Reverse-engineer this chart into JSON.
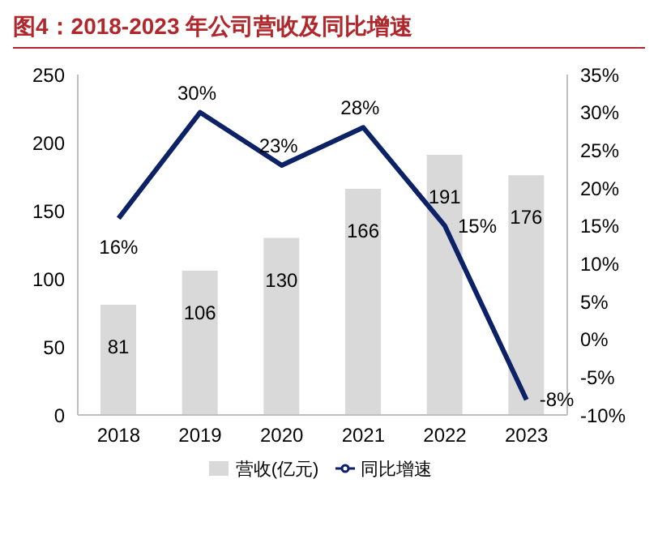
{
  "chart_data": {
    "type": "bar",
    "title": "图4：2018-2023 年公司营收及同比增速",
    "categories": [
      "2018",
      "2019",
      "2020",
      "2021",
      "2022",
      "2023"
    ],
    "series": [
      {
        "name": "营收(亿元)",
        "color": "#d9d9d9",
        "values": [
          81,
          106,
          130,
          166,
          191,
          176
        ],
        "value_labels": [
          "81",
          "106",
          "130",
          "166",
          "191",
          "176"
        ]
      },
      {
        "name": "同比增速",
        "type": "line",
        "axis": "y2",
        "color": "#0c2166",
        "values": [
          16,
          30,
          23,
          28,
          15,
          -8
        ],
        "value_labels": [
          "16%",
          "30%",
          "23%",
          "28%",
          "15%",
          "-8%"
        ]
      }
    ],
    "ylim": [
      0,
      250
    ],
    "yticks": [
      0,
      50,
      100,
      150,
      200,
      250
    ],
    "y2lim": [
      -10,
      35
    ],
    "y2ticks": [
      {
        "value": -10,
        "label": "-10%"
      },
      {
        "value": -5,
        "label": "-5%"
      },
      {
        "value": 0,
        "label": "0%"
      },
      {
        "value": 5,
        "label": "5%"
      },
      {
        "value": 10,
        "label": "10%"
      },
      {
        "value": 15,
        "label": "15%"
      },
      {
        "value": 20,
        "label": "20%"
      },
      {
        "value": 25,
        "label": "25%"
      },
      {
        "value": 30,
        "label": "30%"
      },
      {
        "value": 35,
        "label": "35%"
      }
    ],
    "legend": "bottom",
    "marker": "none",
    "line_style": "solid"
  }
}
